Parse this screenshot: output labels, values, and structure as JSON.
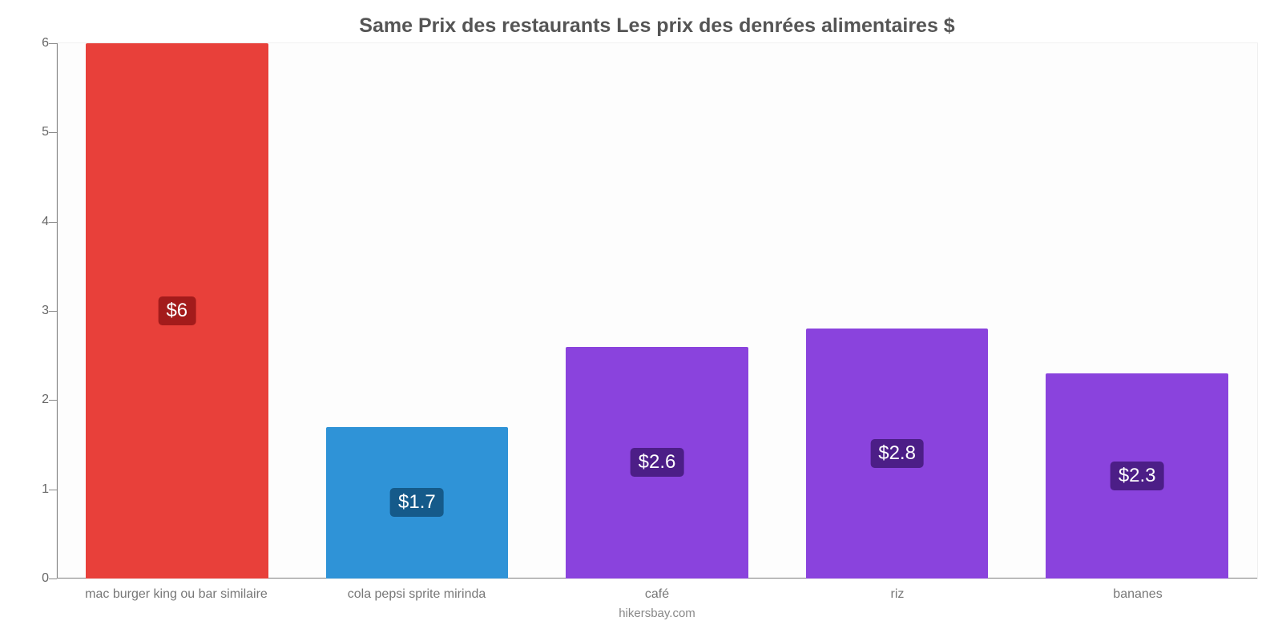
{
  "chart": {
    "type": "bar",
    "title": "Same Prix des restaurants Les prix des denrées alimentaires $",
    "title_fontsize": 25,
    "title_color": "#555555",
    "attribution": "hikersbay.com",
    "attribution_fontsize": 15,
    "attribution_color": "#888888",
    "background_color": "#fdfdfd",
    "plot_border_color": "#f0f0f0",
    "axis_color": "#888888",
    "ylim": [
      0,
      6
    ],
    "ytick_step": 1,
    "yticks": [
      0,
      1,
      2,
      3,
      4,
      5,
      6
    ],
    "ytick_fontsize": 16,
    "xlabel_fontsize": 16,
    "xlabel_color": "#777777",
    "bar_width_pct": 76,
    "value_label_fontsize": 24,
    "categories": [
      "mac burger king ou bar similaire",
      "cola pepsi sprite mirinda",
      "café",
      "riz",
      "bananes"
    ],
    "series": [
      {
        "value": 6.0,
        "display": "$6",
        "bar_color": "#e8403a",
        "label_bg": "#a31b1b"
      },
      {
        "value": 1.7,
        "display": "$1.7",
        "bar_color": "#2f93d7",
        "label_bg": "#155a8a"
      },
      {
        "value": 2.6,
        "display": "$2.6",
        "bar_color": "#8a43dd",
        "label_bg": "#4c1e87"
      },
      {
        "value": 2.8,
        "display": "$2.8",
        "bar_color": "#8a43dd",
        "label_bg": "#4c1e87"
      },
      {
        "value": 2.3,
        "display": "$2.3",
        "bar_color": "#8a43dd",
        "label_bg": "#4c1e87"
      }
    ]
  }
}
